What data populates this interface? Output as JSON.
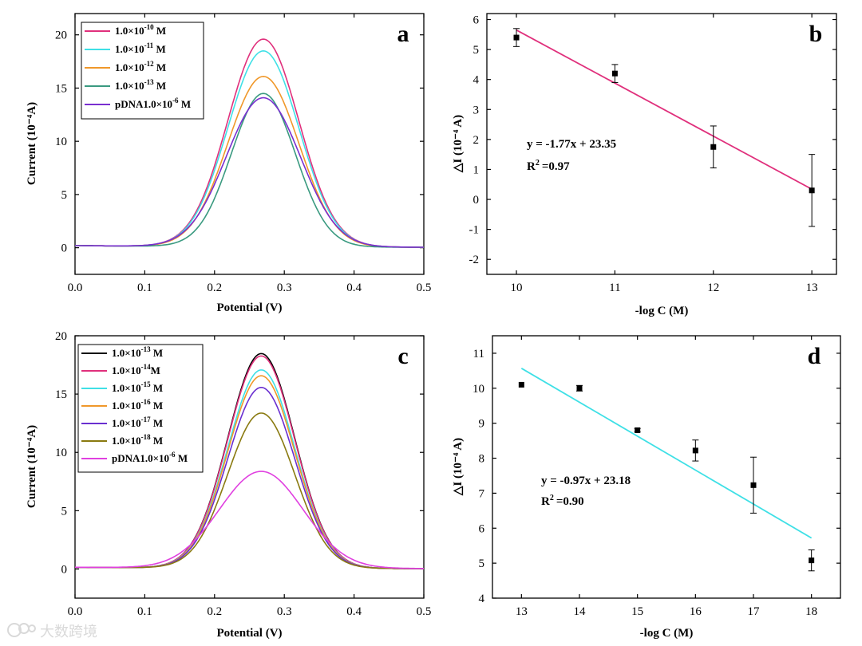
{
  "chart_data": [
    {
      "id": "a",
      "type": "line",
      "panel_label": "a",
      "xlabel": "Potential (V)",
      "ylabel": "Current (10⁻⁴A)",
      "xlim": [
        0.0,
        0.5
      ],
      "ylim": [
        -2.5,
        22.0
      ],
      "xticks": [
        0.0,
        0.1,
        0.2,
        0.3,
        0.4,
        0.5
      ],
      "yticks": [
        0,
        5,
        10,
        15,
        20
      ],
      "baseline_start": 0.2,
      "peak_x": 0.27,
      "series": [
        {
          "name": "1.0×10⁻¹⁰ M",
          "base": "1.0×10",
          "exp": "-10",
          "unit": " M",
          "color": "#e0307c",
          "peak": 19.5,
          "width": 0.051
        },
        {
          "name": "1.0×10⁻¹¹ M",
          "base": "1.0×10",
          "exp": "-11",
          "unit": " M",
          "color": "#3fe0e6",
          "peak": 18.4,
          "width": 0.051
        },
        {
          "name": "1.0×10⁻¹² M",
          "base": "1.0×10",
          "exp": "-12",
          "unit": " M",
          "color": "#f0982a",
          "peak": 16.0,
          "width": 0.051
        },
        {
          "name": "1.0×10⁻¹³ M",
          "base": "1.0×10",
          "exp": "-13",
          "unit": " M",
          "color": "#3a9a80",
          "peak": 14.4,
          "width": 0.046
        },
        {
          "name": "pDNA1.0×10⁻⁶ M",
          "base": "pDNA1.0×10",
          "exp": "-6",
          "unit": " M",
          "color": "#7a2fd0",
          "peak": 14.0,
          "width": 0.053
        }
      ]
    },
    {
      "id": "b",
      "type": "scatter",
      "panel_label": "b",
      "xlabel": "-log C (M)",
      "ylabel": "△I (10⁻⁴ A)",
      "xlim": [
        9.7,
        13.25
      ],
      "ylim": [
        -2.5,
        6.2
      ],
      "xticks": [
        10,
        11,
        12,
        13
      ],
      "yticks": [
        -2,
        -1,
        0,
        1,
        2,
        3,
        4,
        5,
        6
      ],
      "x": [
        10,
        11,
        12,
        13
      ],
      "y": [
        5.4,
        4.2,
        1.75,
        0.3
      ],
      "err": [
        0.3,
        0.3,
        0.7,
        1.2
      ],
      "fit": {
        "slope": -1.77,
        "intercept": 23.35,
        "x_range": [
          10,
          13
        ],
        "color": "#e0307c"
      },
      "equation": "y = -1.77x + 23.35",
      "r2_label": "R",
      "r2_exp": "2",
      "r2_value": "=0.97"
    },
    {
      "id": "c",
      "type": "line",
      "panel_label": "c",
      "xlabel": "Potential (V)",
      "ylabel": "Current (10⁻⁴A)",
      "xlim": [
        0.0,
        0.5
      ],
      "ylim": [
        -2.5,
        20.0
      ],
      "xticks": [
        0.0,
        0.1,
        0.2,
        0.3,
        0.4,
        0.5
      ],
      "yticks": [
        0,
        5,
        10,
        15,
        20
      ],
      "baseline_start": 0.15,
      "peak_x": 0.267,
      "series": [
        {
          "name": "1.0×10⁻¹³ M",
          "base": "1.0×10",
          "exp": "-13",
          "unit": " M",
          "color": "#000000",
          "peak": 18.4,
          "width": 0.048
        },
        {
          "name": "1.0×10⁻¹⁴M",
          "base": "1.0×10",
          "exp": "-14",
          "unit": "M",
          "color": "#e0307c",
          "peak": 18.2,
          "width": 0.048
        },
        {
          "name": "1.0×10⁻¹⁵ M",
          "base": "1.0×10",
          "exp": "-15",
          "unit": " M",
          "color": "#3fe0e6",
          "peak": 17.0,
          "width": 0.048
        },
        {
          "name": "1.0×10⁻¹⁶ M",
          "base": "1.0×10",
          "exp": "-16",
          "unit": " M",
          "color": "#f0982a",
          "peak": 16.5,
          "width": 0.048
        },
        {
          "name": "1.0×10⁻¹⁷ M",
          "base": "1.0×10",
          "exp": "-17",
          "unit": " M",
          "color": "#6a2fd0",
          "peak": 15.5,
          "width": 0.048
        },
        {
          "name": "1.0×10⁻¹⁸ M",
          "base": "1.0×10",
          "exp": "-18",
          "unit": " M",
          "color": "#8a7a10",
          "peak": 13.3,
          "width": 0.048
        },
        {
          "name": "pDNA1.0×10⁻⁶ M",
          "base": "pDNA1.0×10",
          "exp": "-6",
          "unit": " M",
          "color": "#e040e0",
          "peak": 8.3,
          "width": 0.06
        }
      ]
    },
    {
      "id": "d",
      "type": "scatter",
      "panel_label": "d",
      "xlabel": "-log C (M)",
      "ylabel": "△I (10⁻⁴ A)",
      "xlim": [
        12.5,
        18.5
      ],
      "ylim": [
        4.0,
        11.5
      ],
      "xticks": [
        13,
        14,
        15,
        16,
        17,
        18
      ],
      "yticks": [
        4,
        5,
        6,
        7,
        8,
        9,
        10,
        11
      ],
      "x": [
        13,
        14,
        15,
        16,
        17,
        18
      ],
      "y": [
        10.1,
        10.0,
        8.8,
        8.22,
        7.23,
        5.08
      ],
      "err": [
        0.0,
        0.08,
        0.05,
        0.3,
        0.8,
        0.3
      ],
      "fit": {
        "slope": -0.97,
        "intercept": 23.18,
        "x_range": [
          13,
          18
        ],
        "color": "#3fe0e6"
      },
      "equation": "y = -0.97x + 23.18",
      "r2_label": "R",
      "r2_exp": "2",
      "r2_value": "=0.90"
    }
  ],
  "watermark": "大数跨境"
}
